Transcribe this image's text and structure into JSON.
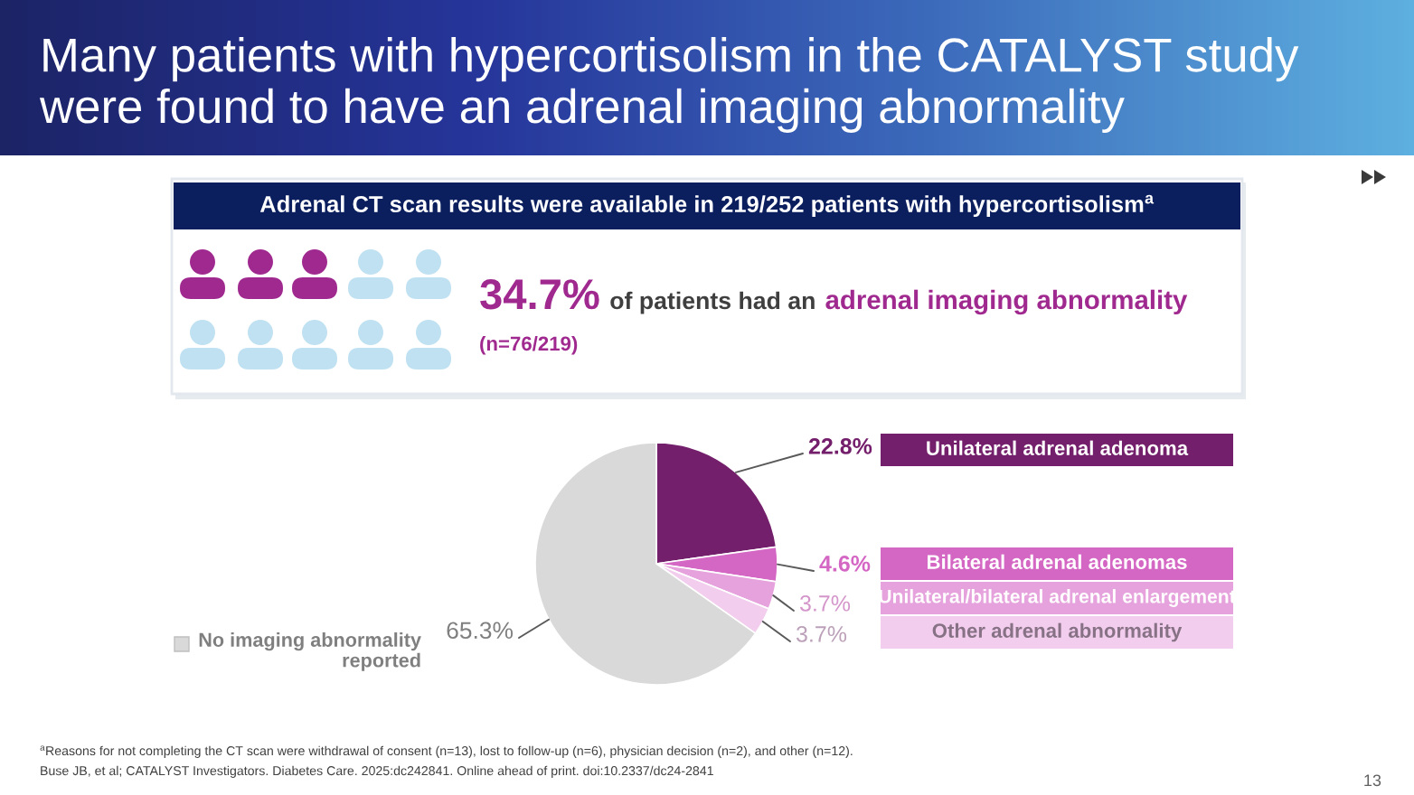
{
  "chart_data": {
    "type": "pie",
    "title": "Many patients with hypercortisolism in the CATALYST study were found to have an adrenal imaging abnormality",
    "subtitle": "Adrenal CT scan results were available in 219/252 patients with hypercortisolism$^{a}$",
    "categories": [
      "Unilateral adrenal adenoma",
      "Bilateral adrenal adenomas",
      "Unilateral/bilateral adrenal enlargement",
      "Other adrenal abnormality",
      "No imaging abnormality reported"
    ],
    "values": [
      22.8,
      4.6,
      3.7,
      3.7,
      65.3
    ],
    "colors": [
      "#741f6b",
      "#d466c4",
      "#e6a2dc",
      "#f2cdee",
      "#d9d9d9"
    ],
    "value_labels": [
      "22.8%",
      "4.6%",
      "3.7%",
      "3.7%",
      "65.3%"
    ],
    "legend": "right",
    "annotations": [
      "34.7%",
      "of patients had an",
      "adrenal imaging abnormality",
      "(n=76/219)",
      "$^{a}$Reasons for not completing the CT scan were withdrawal of consent (n=13), lost to follow-up (n=6), physician decision (n=2), and other (n=12).",
      "Buse JB, et al; CATALYST Investigators. Diabetes Care. 2025:dc242841. Online ahead of print. doi:10.2337/dc24-2841",
      "13"
    ]
  }
}
